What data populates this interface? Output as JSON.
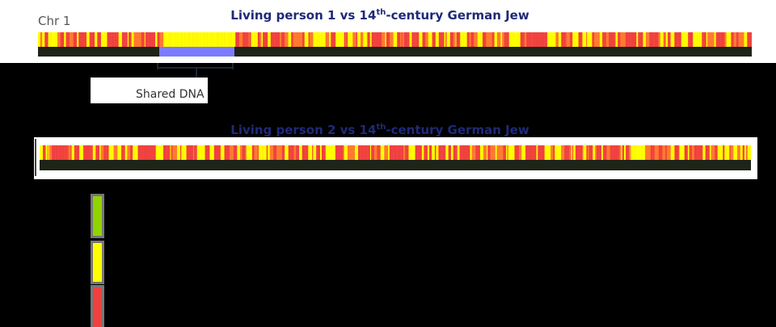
{
  "chr_label": "Chr 1",
  "panel1": {
    "title": {
      "before": "Living person 1 vs 14",
      "sup": "th",
      "after": "-century German Jew"
    },
    "annotation": "Shared DNA"
  },
  "panel2": {
    "title": {
      "before": "Living person 2 vs 14",
      "sup": "th",
      "after": "-century German Jew"
    }
  }
}
